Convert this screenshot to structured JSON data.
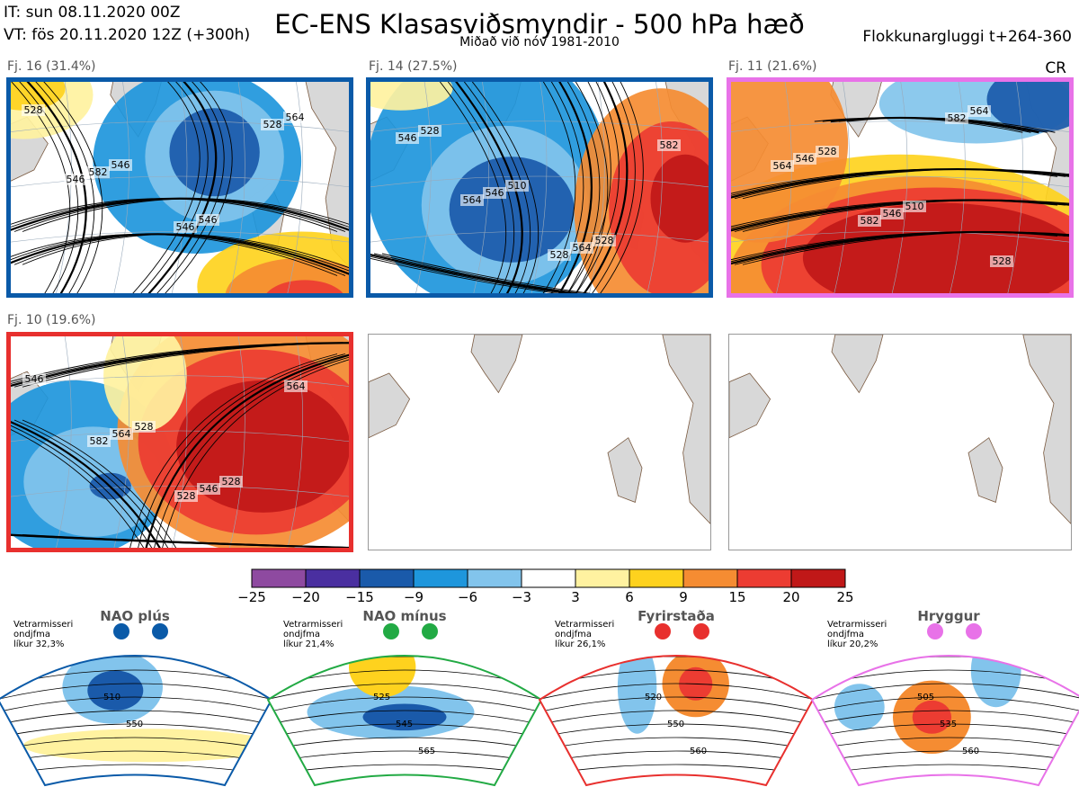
{
  "header": {
    "it": "IT: sun 08.11.2020 00Z",
    "vt": "VT: fös 20.11.2020 12Z  (+300h)",
    "title": "EC-ENS Klasasviðsmyndir - 500 hPa hæð",
    "subtitle": "Miðað við nóv 1981-2010",
    "window": "Flokkunargluggi t+264-360",
    "cr": "CR"
  },
  "panels": [
    {
      "label": "Fj. 16 (31.4%)",
      "border": "#0a5aa8",
      "contours": [
        "528",
        "546",
        "546",
        "564",
        "582",
        "546",
        "528",
        "546"
      ]
    },
    {
      "label": "Fj. 14 (27.5%)",
      "border": "#0a5aa8",
      "contours": [
        "528",
        "510",
        "528",
        "546",
        "546",
        "564",
        "582",
        "564",
        "528"
      ]
    },
    {
      "label": "Fj. 11 (21.6%)",
      "border": "#e872e8",
      "contours": [
        "528",
        "510",
        "528",
        "546",
        "546",
        "564",
        "564",
        "582",
        "582"
      ]
    },
    {
      "label": "Fj. 10 (19.6%)",
      "border": "#e8302e",
      "contours": [
        "528",
        "528",
        "546",
        "564",
        "546",
        "564",
        "582",
        "528"
      ]
    }
  ],
  "colorbar": {
    "colors": [
      "#8e4aa0",
      "#4a2fa0",
      "#1a5aaa",
      "#1e96dc",
      "#82c4ec",
      "#ffffff",
      "#fff2a0",
      "#fed21e",
      "#f58c32",
      "#ec3c32",
      "#c01818"
    ],
    "ticks": [
      "−25",
      "−20",
      "−15",
      "−9",
      "−6",
      "−3",
      "3",
      "6",
      "9",
      "15",
      "20",
      "25"
    ]
  },
  "regimes": [
    {
      "title": "NAO plús",
      "note": [
        "Vetrarmisseri",
        "ondjfma",
        "líkur 32,3%"
      ],
      "color": "#0a5aa8",
      "contours": [
        "510",
        "550"
      ]
    },
    {
      "title": "NAO mínus",
      "note": [
        "Vetrarmisseri",
        "ondjfma",
        "líkur 21,4%"
      ],
      "color": "#22aa44",
      "contours": [
        "525",
        "545",
        "565"
      ]
    },
    {
      "title": "Fyrirstaða",
      "note": [
        "Vetrarmisseri",
        "ondjfma",
        "líkur 26,1%"
      ],
      "color": "#e8302e",
      "contours": [
        "520",
        "550",
        "560"
      ]
    },
    {
      "title": "Hryggur",
      "note": [
        "Vetrarmisseri",
        "ondjfma",
        "líkur 20,2%"
      ],
      "color": "#e872e8",
      "contours": [
        "505",
        "535",
        "560"
      ]
    }
  ]
}
